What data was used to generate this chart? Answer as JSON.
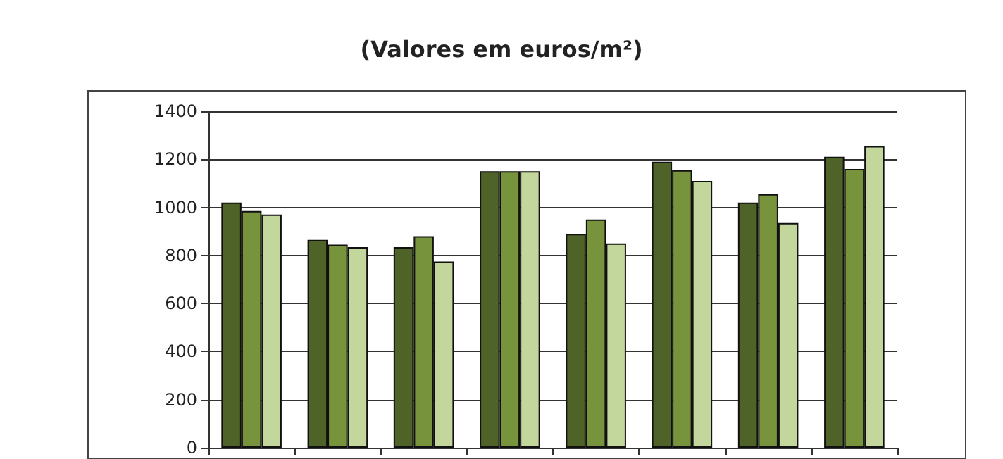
{
  "chart_data": {
    "type": "bar",
    "title": "(Valores em euros/m²)",
    "categories": [
      null,
      null,
      null,
      null,
      null,
      null,
      null,
      null
    ],
    "series": [
      {
        "color": "#4f6228",
        "values": [
          1020,
          865,
          835,
          1150,
          890,
          1190,
          1020,
          1210
        ]
      },
      {
        "color": "#77933c",
        "values": [
          985,
          845,
          880,
          1150,
          950,
          1155,
          1055,
          1160
        ]
      },
      {
        "color": "#c3d69b",
        "values": [
          970,
          835,
          775,
          1150,
          850,
          1110,
          935,
          1255
        ]
      }
    ],
    "ylim": [
      0,
      1400
    ],
    "yticks": [
      0,
      200,
      400,
      600,
      800,
      1000,
      1200,
      1400
    ],
    "grid": "y"
  }
}
